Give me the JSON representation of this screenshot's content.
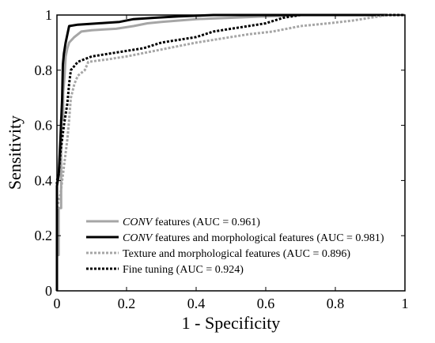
{
  "chart_data": {
    "type": "line",
    "title": "",
    "xlabel": "1 - Specificity",
    "ylabel": "Sensitivity",
    "xlim": [
      0,
      1
    ],
    "ylim": [
      0,
      1
    ],
    "x_ticks": [
      "0",
      "0.2",
      "0.4",
      "0.6",
      "0.8",
      "1"
    ],
    "y_ticks": [
      "0",
      "0.2",
      "0.4",
      "0.6",
      "0.8",
      "1"
    ],
    "grid": false,
    "legend_position": "bottom-right",
    "series": [
      {
        "name_italic": "CONV",
        "name_rest": " features (AUC = 0.961)",
        "color": "#a6a6a6",
        "style": "solid",
        "points": [
          [
            0,
            0
          ],
          [
            0,
            0.13
          ],
          [
            0.005,
            0.13
          ],
          [
            0.005,
            0.3
          ],
          [
            0.012,
            0.3
          ],
          [
            0.012,
            0.62
          ],
          [
            0.018,
            0.62
          ],
          [
            0.018,
            0.72
          ],
          [
            0.022,
            0.78
          ],
          [
            0.025,
            0.85
          ],
          [
            0.03,
            0.88
          ],
          [
            0.035,
            0.9
          ],
          [
            0.05,
            0.92
          ],
          [
            0.07,
            0.94
          ],
          [
            0.1,
            0.945
          ],
          [
            0.17,
            0.95
          ],
          [
            0.22,
            0.96
          ],
          [
            0.26,
            0.97
          ],
          [
            0.3,
            0.975
          ],
          [
            0.35,
            0.98
          ],
          [
            0.4,
            0.985
          ],
          [
            0.5,
            0.99
          ],
          [
            0.6,
            0.995
          ],
          [
            0.7,
            1.0
          ],
          [
            1.0,
            1.0
          ]
        ]
      },
      {
        "name_italic": "CONV",
        "name_rest": " features and morphological features (AUC = 0.981)",
        "color": "#000000",
        "style": "solid",
        "points": [
          [
            0,
            0
          ],
          [
            0,
            0.38
          ],
          [
            0.005,
            0.42
          ],
          [
            0.01,
            0.55
          ],
          [
            0.015,
            0.7
          ],
          [
            0.017,
            0.82
          ],
          [
            0.02,
            0.86
          ],
          [
            0.025,
            0.9
          ],
          [
            0.03,
            0.93
          ],
          [
            0.035,
            0.96
          ],
          [
            0.06,
            0.965
          ],
          [
            0.12,
            0.97
          ],
          [
            0.18,
            0.975
          ],
          [
            0.22,
            0.985
          ],
          [
            0.28,
            0.99
          ],
          [
            0.35,
            0.995
          ],
          [
            0.45,
            1.0
          ],
          [
            1.0,
            1.0
          ]
        ]
      },
      {
        "name_italic": "",
        "name_rest": "Texture and morphological features (AUC = 0.896)",
        "color": "#a6a6a6",
        "style": "dotted",
        "points": [
          [
            0,
            0
          ],
          [
            0,
            0.3
          ],
          [
            0.01,
            0.35
          ],
          [
            0.02,
            0.45
          ],
          [
            0.03,
            0.55
          ],
          [
            0.035,
            0.62
          ],
          [
            0.04,
            0.7
          ],
          [
            0.05,
            0.75
          ],
          [
            0.06,
            0.78
          ],
          [
            0.08,
            0.8
          ],
          [
            0.09,
            0.83
          ],
          [
            0.15,
            0.84
          ],
          [
            0.2,
            0.85
          ],
          [
            0.24,
            0.86
          ],
          [
            0.28,
            0.87
          ],
          [
            0.32,
            0.88
          ],
          [
            0.36,
            0.89
          ],
          [
            0.4,
            0.9
          ],
          [
            0.45,
            0.91
          ],
          [
            0.5,
            0.92
          ],
          [
            0.55,
            0.93
          ],
          [
            0.62,
            0.94
          ],
          [
            0.7,
            0.96
          ],
          [
            0.78,
            0.97
          ],
          [
            0.85,
            0.98
          ],
          [
            0.9,
            0.99
          ],
          [
            0.95,
            1.0
          ],
          [
            1.0,
            1.0
          ]
        ]
      },
      {
        "name_italic": "",
        "name_rest": "Fine tuning (AUC = 0.924)",
        "color": "#000000",
        "style": "dotted",
        "points": [
          [
            0,
            0
          ],
          [
            0,
            0.4
          ],
          [
            0.005,
            0.42
          ],
          [
            0.01,
            0.5
          ],
          [
            0.02,
            0.6
          ],
          [
            0.03,
            0.68
          ],
          [
            0.035,
            0.75
          ],
          [
            0.04,
            0.8
          ],
          [
            0.06,
            0.83
          ],
          [
            0.08,
            0.84
          ],
          [
            0.1,
            0.85
          ],
          [
            0.15,
            0.86
          ],
          [
            0.2,
            0.87
          ],
          [
            0.25,
            0.88
          ],
          [
            0.3,
            0.9
          ],
          [
            0.35,
            0.91
          ],
          [
            0.4,
            0.92
          ],
          [
            0.45,
            0.94
          ],
          [
            0.5,
            0.95
          ],
          [
            0.55,
            0.96
          ],
          [
            0.6,
            0.97
          ],
          [
            0.65,
            0.99
          ],
          [
            0.7,
            1.0
          ],
          [
            1.0,
            1.0
          ]
        ]
      }
    ]
  }
}
